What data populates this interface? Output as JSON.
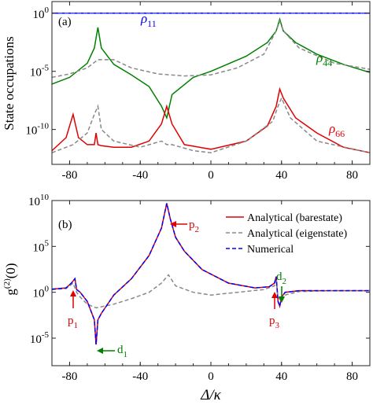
{
  "chart_data": [
    {
      "panel_label": "(a)",
      "type": "line",
      "ylabel": "State occupations",
      "yscale": "log",
      "ylim": [
        1e-13,
        10
      ],
      "xlim": [
        -90,
        90
      ],
      "xticks": [
        -80,
        -40,
        0,
        40,
        80
      ],
      "xtick_labels": [
        "-80",
        "-40",
        "0",
        "40",
        "80"
      ],
      "ytick_labels": [
        {
          "base": "10",
          "exp": "0",
          "value": 1
        },
        {
          "base": "10",
          "exp": "-5",
          "value": 1e-05
        },
        {
          "base": "10",
          "exp": "-10",
          "value": 1e-10
        }
      ],
      "series": [
        {
          "label": "ρ11",
          "label_main": "ρ",
          "label_sub": "11",
          "color": "#0000ff",
          "style": "solid+dashed",
          "x": [
            -90,
            90
          ],
          "y": [
            1,
            1
          ]
        },
        {
          "label": "ρ44",
          "label_main": "ρ",
          "label_sub": "44",
          "color": "#008000",
          "style": "solid",
          "x": [
            -90,
            -80,
            -70,
            -66,
            -64,
            -62,
            -55,
            -45,
            -35,
            -28,
            -25,
            -22,
            -10,
            0,
            20,
            32,
            37,
            39,
            41,
            48,
            60,
            75,
            90
          ],
          "y": [
            8e-07,
            3e-06,
            5e-05,
            0.001,
            0.06,
            0.001,
            4e-05,
            5e-06,
            5e-07,
            1e-08,
            1e-09,
            1e-07,
            3e-06,
            1e-05,
            0.0002,
            0.003,
            0.03,
            0.3,
            0.03,
            0.003,
            0.0003,
            4e-05,
            8e-06
          ]
        },
        {
          "label": "Analytical (eigenstate) ρ44",
          "color": "#888888",
          "style": "dashed",
          "x": [
            -90,
            -80,
            -70,
            -64,
            -55,
            -45,
            -30,
            -15,
            0,
            15,
            30,
            37,
            39,
            41,
            50,
            70,
            90
          ],
          "y": [
            3e-06,
            6e-06,
            2e-05,
            0.0001,
            0.0001,
            2e-05,
            6e-06,
            4e-06,
            5e-06,
            2e-05,
            0.0003,
            0.03,
            0.2,
            0.03,
            0.001,
            5e-05,
            1.5e-05
          ]
        },
        {
          "label": "ρ66",
          "label_main": "ρ",
          "label_sub": "66",
          "color": "#e00000",
          "style": "solid",
          "x": [
            -90,
            -82,
            -78,
            -75,
            -70,
            -66,
            -65,
            -64,
            -62,
            -55,
            -45,
            -35,
            -28,
            -25,
            -22,
            -15,
            0,
            20,
            32,
            37,
            39,
            41,
            48,
            60,
            75,
            90
          ],
          "y": [
            1.5e-12,
            2e-11,
            2e-09,
            2e-11,
            5e-12,
            5e-12,
            5e-11,
            5e-12,
            4e-12,
            3e-12,
            3e-12,
            1e-11,
            3e-10,
            1e-08,
            3e-10,
            5e-12,
            2e-12,
            1e-11,
            2e-10,
            1e-08,
            3e-07,
            5e-08,
            1e-09,
            5e-11,
            3e-12,
            1e-12
          ]
        },
        {
          "label": "Analytical (eigenstate) ρ66",
          "color": "#888888",
          "style": "dashed",
          "x": [
            -90,
            -78,
            -70,
            -66,
            -64,
            -62,
            -55,
            -40,
            -28,
            -25,
            -22,
            -10,
            0,
            20,
            35,
            38,
            40,
            45,
            60,
            90
          ],
          "y": [
            1e-12,
            5e-12,
            5e-11,
            2e-09,
            1e-08,
            1e-10,
            1e-11,
            3e-12,
            1e-11,
            5e-12,
            5e-12,
            1.5e-12,
            1e-12,
            1e-11,
            5e-10,
            1e-08,
            5e-08,
            1e-09,
            1e-11,
            1e-12
          ]
        }
      ]
    },
    {
      "panel_label": "(b)",
      "type": "line",
      "ylabel": "g(2)(0)",
      "ylabel_main": "g",
      "ylabel_sup": "(2)",
      "ylabel_tail": "(0)",
      "xlabel": "Δ/κ",
      "yscale": "log",
      "ylim": [
        1e-08,
        10000000000.0
      ],
      "xlim": [
        -90,
        90
      ],
      "xticks": [
        -80,
        -40,
        0,
        40,
        80
      ],
      "xtick_labels": [
        "-80",
        "-40",
        "0",
        "40",
        "80"
      ],
      "ytick_labels": [
        {
          "base": "10",
          "exp": "10",
          "value": 10000000000.0
        },
        {
          "base": "10",
          "exp": "5",
          "value": 100000.0
        },
        {
          "base": "10",
          "exp": "0",
          "value": 1
        },
        {
          "base": "10",
          "exp": "-5",
          "value": 1e-05
        }
      ],
      "legend": {
        "position": "top-right",
        "entries": [
          {
            "label": "Analytical (barestate)",
            "color": "#e00000",
            "style": "solid"
          },
          {
            "label": "Analytical (eigenstate)",
            "color": "#888888",
            "style": "dashed"
          },
          {
            "label": "Numerical",
            "color": "#0000ff",
            "style": "dashed"
          }
        ]
      },
      "series": [
        {
          "name": "Analytical (barestate)",
          "color": "#e00000",
          "style": "solid",
          "x": [
            -90,
            -82,
            -79,
            -77,
            -76,
            -74,
            -70,
            -66,
            -65,
            -64,
            -62,
            -55,
            -45,
            -35,
            -28,
            -25,
            -23,
            -20,
            -15,
            -5,
            10,
            25,
            33,
            36,
            37,
            38,
            39,
            40,
            42,
            50,
            70,
            90
          ],
          "y": [
            2.2,
            3,
            10,
            30,
            2,
            1,
            0.1,
            0.001,
            2e-06,
            0.001,
            0.005,
            0.5,
            30,
            10000.0,
            10000000.0,
            5000000000.0,
            100000000.0,
            1000000.0,
            30000.0,
            300,
            10,
            3,
            4,
            10,
            50,
            0.1,
            0.03,
            0.3,
            1,
            1.5,
            1.5,
            1.5
          ]
        },
        {
          "name": "Analytical (eigenstate)",
          "color": "#888888",
          "style": "dashed",
          "x": [
            -90,
            -82,
            -78,
            -76,
            -74,
            -70,
            -65,
            -55,
            -45,
            -35,
            -28,
            -24,
            -20,
            -10,
            0,
            15,
            30,
            36,
            37,
            38,
            40,
            42,
            50,
            70,
            90
          ],
          "y": [
            2,
            2.5,
            10,
            1,
            0.3,
            0.05,
            0.02,
            0.05,
            0.2,
            1,
            10,
            80,
            5,
            1,
            0.5,
            1,
            2,
            5,
            20,
            0.3,
            0.1,
            0.5,
            1.2,
            1.5,
            1.5
          ]
        },
        {
          "name": "Numerical",
          "color": "#0000ff",
          "style": "dashed",
          "x": [
            -90,
            -82,
            -79,
            -77,
            -76,
            -74,
            -70,
            -66,
            -65,
            -64,
            -62,
            -55,
            -45,
            -35,
            -28,
            -25,
            -23,
            -20,
            -15,
            -5,
            10,
            25,
            33,
            36,
            37,
            38,
            39,
            40,
            42,
            50,
            70,
            90
          ],
          "y": [
            2.2,
            3,
            10,
            30,
            2,
            1,
            0.1,
            0.001,
            2e-06,
            0.001,
            0.005,
            0.5,
            30,
            10000.0,
            10000000.0,
            5000000000.0,
            100000000.0,
            1000000.0,
            30000.0,
            300,
            10,
            3,
            4,
            10,
            50,
            0.1,
            0.03,
            0.3,
            1,
            1.5,
            1.5,
            1.5
          ]
        }
      ],
      "annotations": [
        {
          "main": "p",
          "sub": "1",
          "color": "#e00000",
          "x": -79,
          "y": 20
        },
        {
          "main": "d",
          "sub": "1",
          "color": "#008000",
          "x": -65,
          "y": 2e-06
        },
        {
          "main": "p",
          "sub": "2",
          "color": "#e00000",
          "x": -24,
          "y": 1000000000.0
        },
        {
          "main": "p",
          "sub": "3",
          "color": "#e00000",
          "x": 37,
          "y": 30
        },
        {
          "main": "d",
          "sub": "2",
          "color": "#008000",
          "x": 39,
          "y": 0.03
        }
      ]
    }
  ]
}
